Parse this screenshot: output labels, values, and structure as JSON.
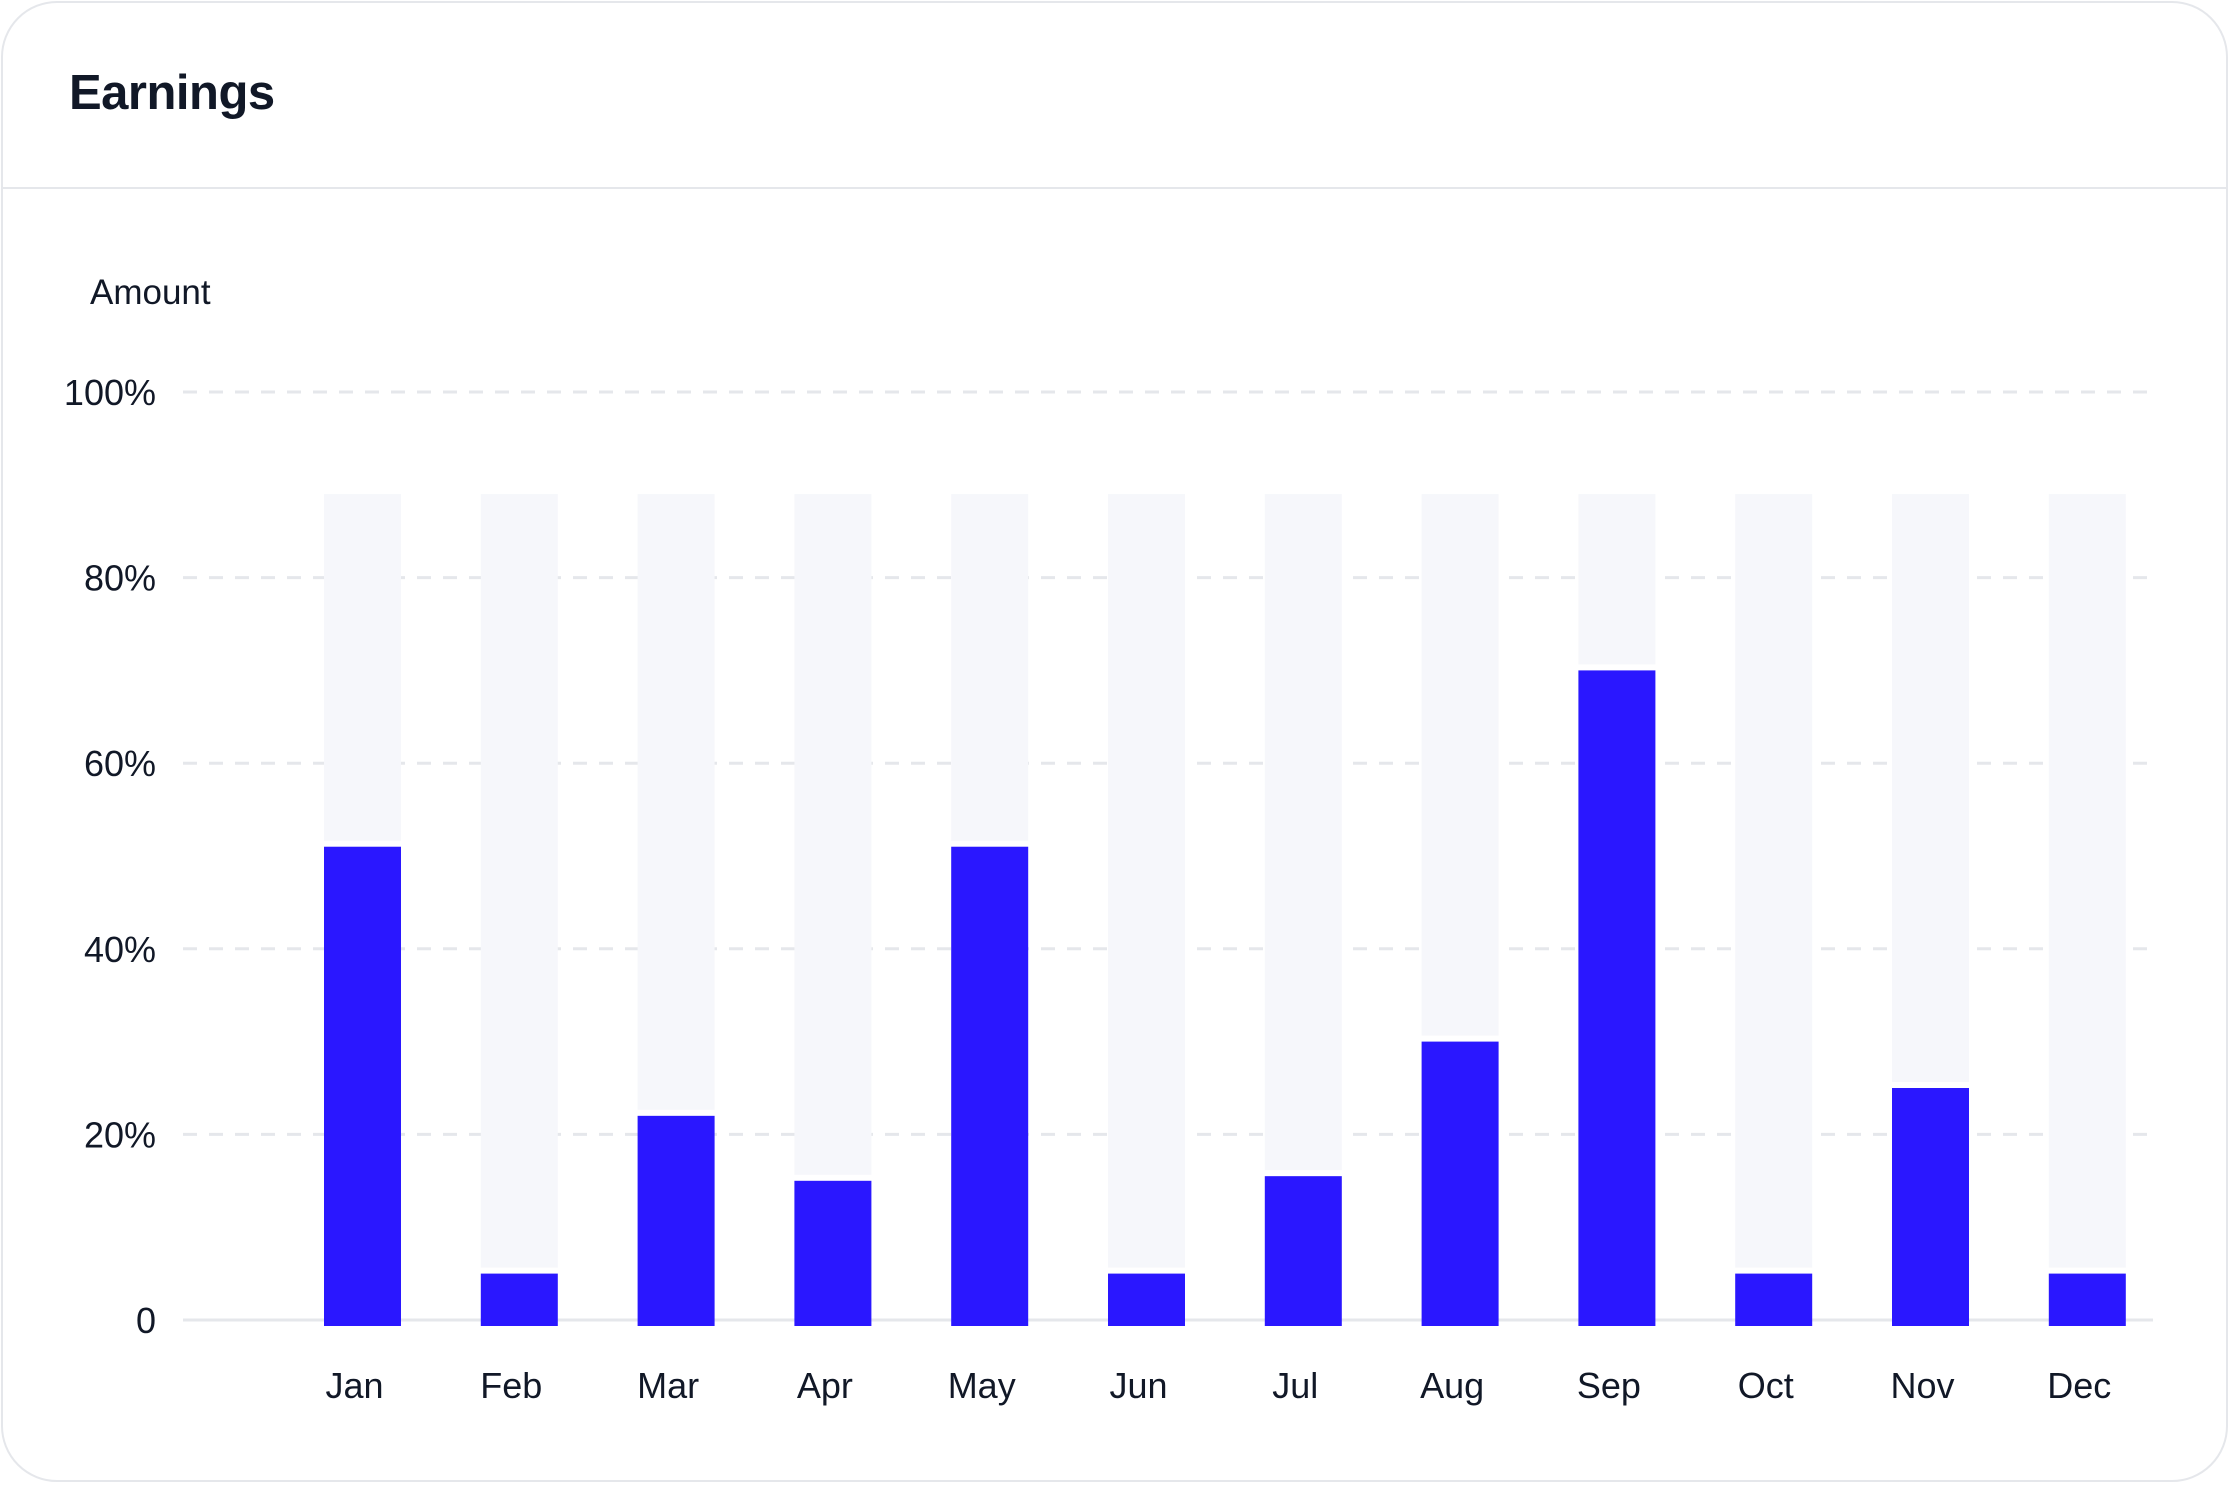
{
  "card": {
    "title": "Earnings"
  },
  "chart_data": {
    "type": "bar",
    "title": "Earnings",
    "ylabel": "Amount",
    "xlabel": "",
    "ylim": [
      0,
      100
    ],
    "y_ticks": [
      "0",
      "20%",
      "40%",
      "60%",
      "80%",
      "100%"
    ],
    "y_tick_values": [
      0,
      20,
      40,
      60,
      80,
      100
    ],
    "categories": [
      "Jan",
      "Feb",
      "Mar",
      "Apr",
      "May",
      "Jun",
      "Jul",
      "Aug",
      "Sep",
      "Oct",
      "Nov",
      "Dec"
    ],
    "values": [
      51,
      5,
      22,
      15,
      51,
      5,
      15.5,
      30,
      70,
      5,
      25,
      5
    ],
    "track_value": 89,
    "grid": true,
    "colors": {
      "bar": "#2a17ff",
      "track": "#f6f7fb",
      "grid": "#e5e7eb",
      "text": "#111827"
    }
  }
}
